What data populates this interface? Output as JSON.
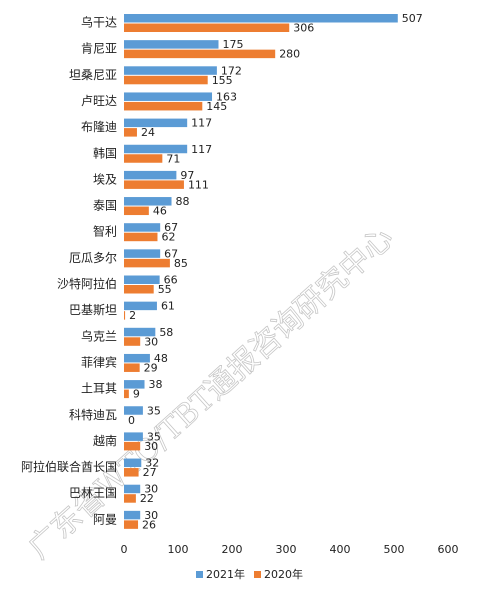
{
  "watermark": "广东省WTO/TBT通报咨询研究中心",
  "chart_data": {
    "type": "bar",
    "orientation": "horizontal",
    "categories": [
      "乌干达",
      "肯尼亚",
      "坦桑尼亚",
      "卢旺达",
      "布隆迪",
      "韩国",
      "埃及",
      "泰国",
      "智利",
      "厄瓜多尔",
      "沙特阿拉伯",
      "巴基斯坦",
      "乌克兰",
      "菲律宾",
      "土耳其",
      "科特迪瓦",
      "越南",
      "阿拉伯联合酋长国",
      "巴林王国",
      "阿曼"
    ],
    "series": [
      {
        "name": "2021年",
        "color": "#5b9bd5",
        "values": [
          507,
          175,
          172,
          163,
          117,
          117,
          97,
          88,
          67,
          67,
          66,
          61,
          58,
          48,
          38,
          35,
          35,
          32,
          30,
          30
        ]
      },
      {
        "name": "2020年",
        "color": "#ed7d31",
        "values": [
          306,
          280,
          155,
          145,
          24,
          71,
          111,
          46,
          62,
          85,
          55,
          2,
          30,
          29,
          9,
          0,
          30,
          27,
          22,
          26
        ]
      }
    ],
    "xlim": [
      0,
      600
    ],
    "xticks": [
      0,
      100,
      200,
      300,
      400,
      500,
      600
    ],
    "legend_position": "bottom",
    "grid": false
  }
}
